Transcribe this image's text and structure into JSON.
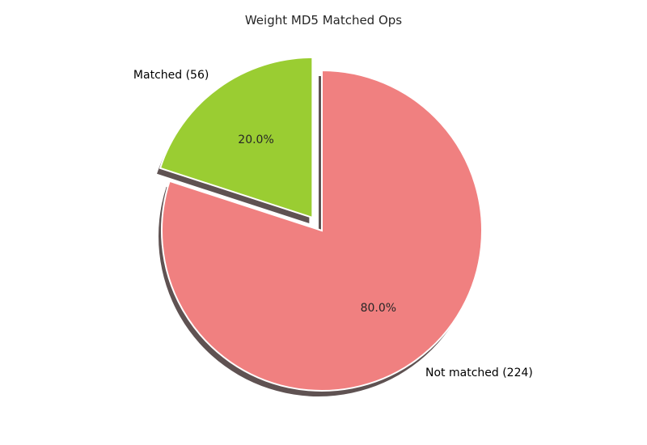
{
  "chart_data": {
    "type": "pie",
    "title": "Weight MD5 Matched Ops",
    "slices": [
      {
        "label": "Matched (56)",
        "value": 56,
        "percent_label": "20.0%",
        "color": "#9acd32",
        "exploded": true
      },
      {
        "label": "Not matched (224)",
        "value": 224,
        "percent_label": "80.0%",
        "color": "#f08080",
        "exploded": false
      }
    ],
    "start_angle_deg": 90,
    "direction": "counterclockwise",
    "shadow": true,
    "edge_color": "#ffffff",
    "shadow_color": "#5f5252"
  }
}
